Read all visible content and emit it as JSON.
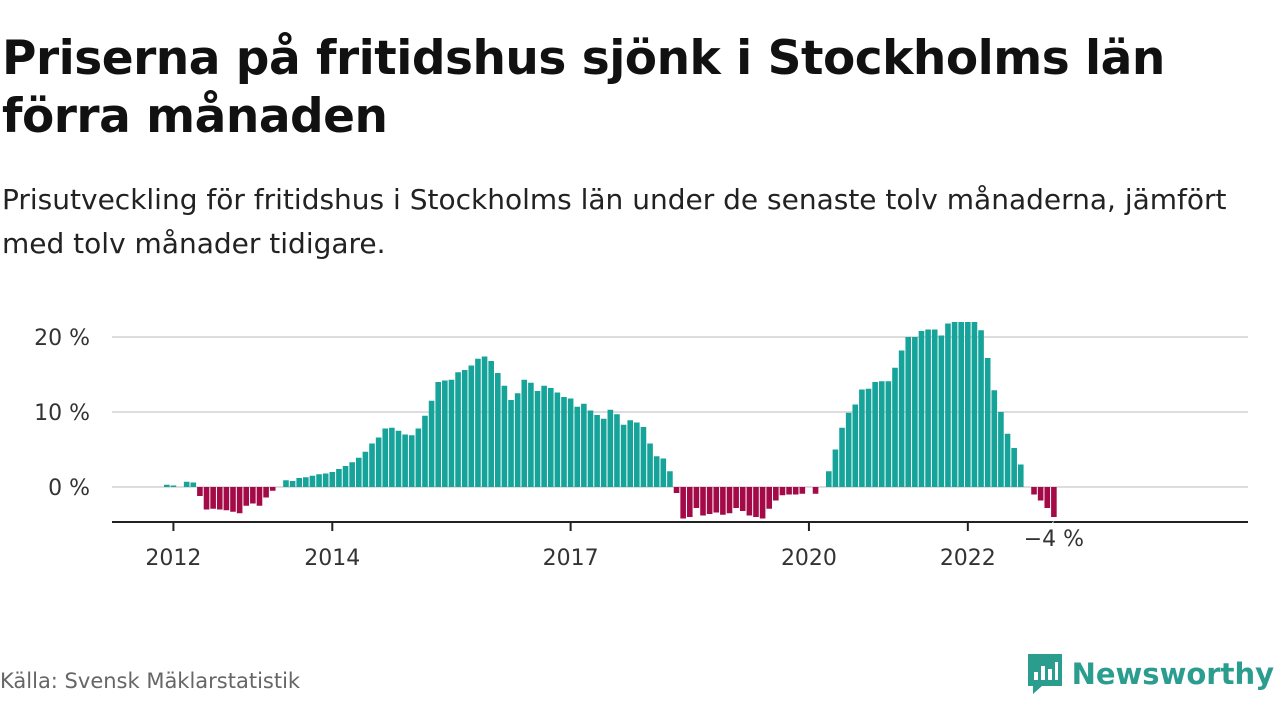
{
  "title": "Priserna på fritidshus sjönk i Stockholms län förra månaden",
  "subtitle": "Prisutveckling för fritidshus i Stockholms län under de senaste tolv månaderna, jämfört med tolv månader tidigare.",
  "source": "Källa: Svensk Mäklarstatistik",
  "brand": {
    "name": "Newsworthy",
    "icon": "newsworthy-logo-icon"
  },
  "colors": {
    "positive": "#16a39a",
    "negative": "#a30a47",
    "grid": "#dddddd",
    "axis": "#222222",
    "brand": "#2a9d8f"
  },
  "chart_data": {
    "type": "bar",
    "title": "Priserna på fritidshus sjönk i Stockholms län förra månaden",
    "subtitle": "Prisutveckling för fritidshus i Stockholms län under de senaste tolv månaderna, jämfört med tolv månader tidigare.",
    "xlabel": "",
    "ylabel": "",
    "x_start": "2011-12",
    "ylim": [
      -5,
      22
    ],
    "y_ticks": [
      {
        "value": 0,
        "label": "0 %"
      },
      {
        "value": 10,
        "label": "10 %"
      },
      {
        "value": 20,
        "label": "20 %"
      }
    ],
    "x_ticks": [
      {
        "value": "2012-01",
        "label": "2012"
      },
      {
        "value": "2014-01",
        "label": "2014"
      },
      {
        "value": "2017-01",
        "label": "2017"
      },
      {
        "value": "2020-01",
        "label": "2020"
      },
      {
        "value": "2022-01",
        "label": "2022"
      }
    ],
    "grid": true,
    "last_value_label": "−4 %",
    "values": [
      0.3,
      0.2,
      0,
      0.7,
      0.6,
      -1.2,
      -3,
      -2.9,
      -3,
      -3.1,
      -3.3,
      -3.5,
      -2.5,
      -2.2,
      -2.5,
      -1.4,
      -0.5,
      null,
      0.9,
      0.8,
      1.2,
      1.3,
      1.5,
      1.7,
      1.8,
      2,
      2.4,
      2.8,
      3.3,
      3.9,
      4.7,
      5.8,
      6.6,
      7.8,
      7.9,
      7.5,
      7,
      6.9,
      7.8,
      9.5,
      11.5,
      14,
      14.2,
      14.3,
      15.3,
      15.6,
      16.2,
      17.1,
      17.4,
      16.8,
      15.2,
      13.5,
      11.6,
      12.5,
      14.3,
      13.9,
      12.8,
      13.5,
      13.2,
      12.6,
      12,
      11.8,
      10.7,
      11.1,
      10.2,
      9.6,
      9.1,
      10.3,
      9.7,
      8.3,
      8.9,
      8.6,
      8,
      5.8,
      4.1,
      3.8,
      2.1,
      -0.8,
      -4.2,
      -4,
      -2.8,
      -3.8,
      -3.6,
      -3.4,
      -3.7,
      -3.5,
      -2.8,
      -3.2,
      -3.8,
      -4,
      -4.2,
      -2.9,
      -1.8,
      -1.1,
      -1,
      -1,
      -0.9,
      null,
      -0.9,
      null,
      2.1,
      5,
      7.9,
      9.9,
      11,
      13,
      13.1,
      14,
      14.1,
      14.1,
      15.9,
      18.2,
      20,
      20,
      20.8,
      21,
      21,
      20.2,
      21.8,
      22,
      22,
      22,
      22,
      20.9,
      17.2,
      12.9,
      10,
      7.1,
      5.2,
      3,
      null,
      -1,
      -1.8,
      -2.8,
      -4
    ]
  }
}
